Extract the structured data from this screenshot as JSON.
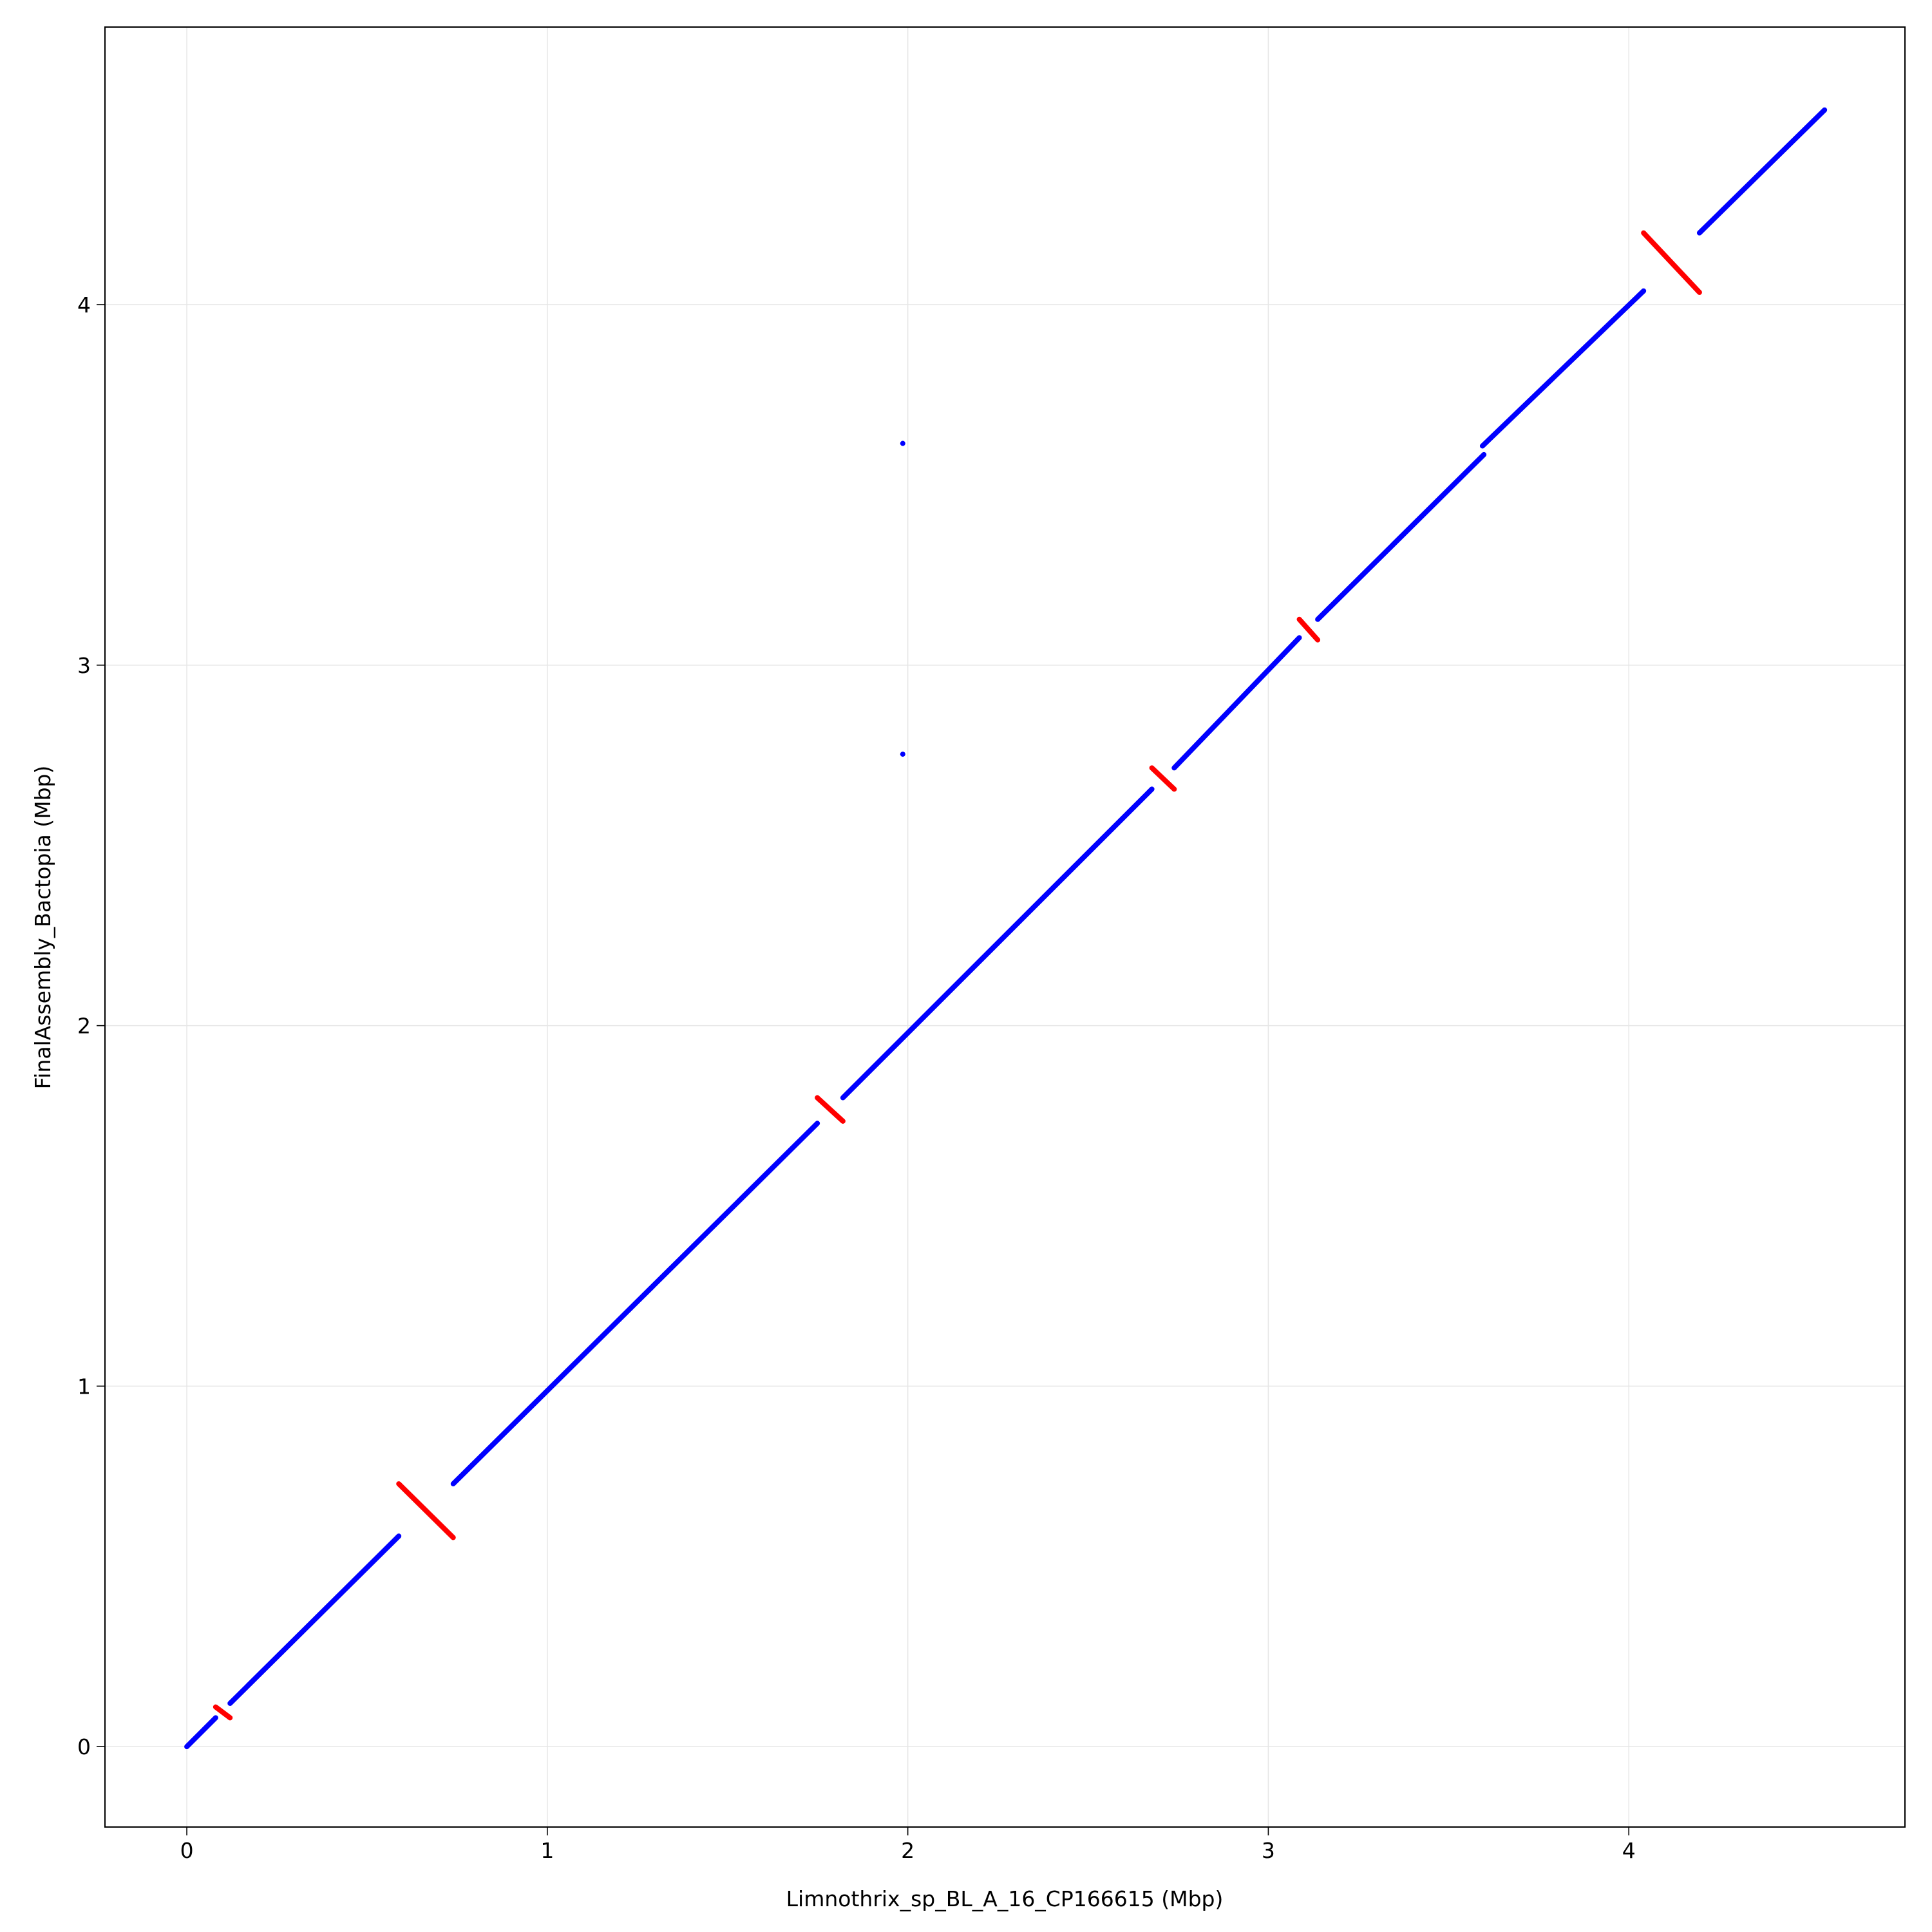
{
  "chart_data": {
    "type": "dotplot",
    "xlabel": "Limnothrix_sp_BL_A_16_CP166615 (Mbp)",
    "ylabel": "FinalAssembly_Bactopia (Mbp)",
    "xlim": [
      -0.227,
      4.766
    ],
    "ylim": [
      -0.223,
      4.77
    ],
    "xticks": [
      0,
      1,
      2,
      3,
      4
    ],
    "yticks": [
      0,
      1,
      2,
      3,
      4
    ],
    "grid": true,
    "series": [
      {
        "color": "#0000ff",
        "segments": [
          {
            "x": [
              0,
              0.08
            ],
            "y": [
              0,
              0.08
            ]
          },
          {
            "x": [
              0.12,
              0.588
            ],
            "y": [
              0.12,
              0.584
            ]
          },
          {
            "x": [
              0.739,
              1.749
            ],
            "y": [
              0.729,
              1.729
            ]
          },
          {
            "x": [
              1.82,
              2.677
            ],
            "y": [
              1.8,
              2.656
            ]
          },
          {
            "x": [
              2.739,
              3.086
            ],
            "y": [
              2.715,
              3.076
            ]
          },
          {
            "x": [
              3.137,
              3.598
            ],
            "y": [
              3.127,
              3.584
            ]
          },
          {
            "x": [
              3.594,
              4.041
            ],
            "y": [
              3.608,
              4.038
            ]
          },
          {
            "x": [
              4.196,
              4.543
            ],
            "y": [
              4.199,
              4.54
            ]
          },
          {
            "x": [
              1.986,
              1.986
            ],
            "y": [
              3.615,
              3.615
            ]
          },
          {
            "x": [
              1.986,
              1.986
            ],
            "y": [
              2.753,
              2.753
            ]
          }
        ]
      },
      {
        "color": "#ff0000",
        "segments": [
          {
            "x": [
              0.08,
              0.12
            ],
            "y": [
              0.11,
              0.08
            ]
          },
          {
            "x": [
              0.588,
              0.739
            ],
            "y": [
              0.729,
              0.58
            ]
          },
          {
            "x": [
              1.749,
              1.82
            ],
            "y": [
              1.8,
              1.735
            ]
          },
          {
            "x": [
              2.677,
              2.739
            ],
            "y": [
              2.715,
              2.656
            ]
          },
          {
            "x": [
              3.086,
              3.137
            ],
            "y": [
              3.127,
              3.07
            ]
          },
          {
            "x": [
              4.041,
              4.196
            ],
            "y": [
              4.199,
              4.034
            ]
          }
        ]
      }
    ]
  }
}
